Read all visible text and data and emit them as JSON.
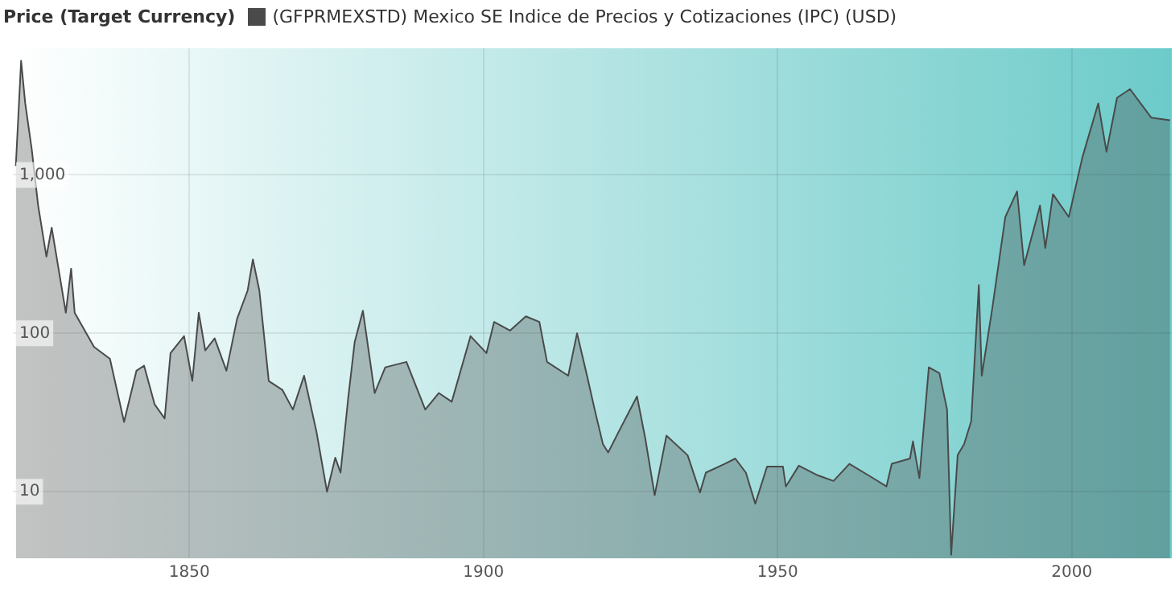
{
  "chart_data": {
    "type": "area",
    "legend_title": "Price (Target Currency)",
    "legend": "top left",
    "log": "y",
    "grid": true,
    "xlim": [
      1820,
      2017
    ],
    "xticks": [
      1850,
      1900,
      1950,
      2000
    ],
    "ylim": [
      3.8,
      6300
    ],
    "yticks": [
      10,
      100,
      {
        "value": 1000,
        "label": "1,000"
      }
    ],
    "series": [
      {
        "name": "(GFPRMEXSTD) Mexico SE Indice de Precios y Cotizaciones (IPC) (USD)",
        "color": "#4a4a4a",
        "x": [
          1820.5,
          1821.4,
          1822.1,
          1823.2,
          1824.3,
          1825.7,
          1826.6,
          1827.9,
          1829,
          1829.9,
          1830.5,
          1833.8,
          1836.5,
          1838.9,
          1841,
          1842.3,
          1844.1,
          1845.8,
          1846.8,
          1849.1,
          1850.5,
          1851.6,
          1852.7,
          1854.3,
          1856.3,
          1858.1,
          1859.9,
          1860.8,
          1861.9,
          1863.5,
          1865.8,
          1867.6,
          1869.5,
          1871.6,
          1873.4,
          1874.8,
          1875.7,
          1877,
          1878.1,
          1879.5,
          1881.5,
          1883.3,
          1886.9,
          1890.1,
          1892.4,
          1894.6,
          1897.8,
          1900.5,
          1901.8,
          1904.5,
          1907.2,
          1909.5,
          1910.8,
          1914.4,
          1915.9,
          1917.6,
          1918.9,
          1920.3,
          1921.2,
          1923,
          1926.1,
          1927.5,
          1929.1,
          1931.1,
          1934.7,
          1936.8,
          1937.8,
          1941,
          1942.8,
          1944.6,
          1946.2,
          1948.2,
          1950.9,
          1951.4,
          1953.6,
          1956.8,
          1959.5,
          1962.2,
          1966.2,
          1968.5,
          1969.4,
          1972.5,
          1973,
          1974.1,
          1975.7,
          1977.5,
          1978.8,
          1979.5,
          1980.6,
          1981.7,
          1982.9,
          1984.2,
          1984.7,
          1986.5,
          1988.7,
          1990.7,
          1991.9,
          1994.6,
          1995.5,
          1996.8,
          1999.5,
          2001.8,
          2004.5,
          2005.9,
          2007.7,
          2009.9,
          2013.5,
          2016.7
        ],
        "values": [
          1140,
          5250,
          2830,
          1460,
          640,
          305,
          465,
          238,
          135,
          256,
          135,
          82,
          69,
          27.6,
          58,
          62.5,
          35.6,
          29,
          75,
          96,
          50,
          135,
          78,
          93,
          58,
          123,
          186,
          293,
          186,
          50,
          44,
          33,
          54,
          24,
          10,
          16.4,
          13.2,
          39,
          88,
          139,
          42,
          61,
          66,
          33,
          42,
          37,
          96,
          75,
          118,
          104,
          128,
          118,
          66,
          54,
          100,
          54,
          33,
          20,
          17.7,
          24,
          40,
          21.7,
          9.5,
          22.6,
          17,
          9.9,
          13.2,
          15,
          16.2,
          13.2,
          8.4,
          14.4,
          14.4,
          10.8,
          14.6,
          12.7,
          11.7,
          15,
          12.2,
          10.8,
          15,
          16.2,
          20.8,
          12.2,
          61,
          56,
          33,
          4,
          17,
          20,
          27.8,
          202,
          54,
          145,
          542,
          787,
          269,
          640,
          345,
          755,
          542,
          1290,
          2830,
          1400,
          3070,
          3480,
          2300,
          2210
        ]
      }
    ]
  }
}
